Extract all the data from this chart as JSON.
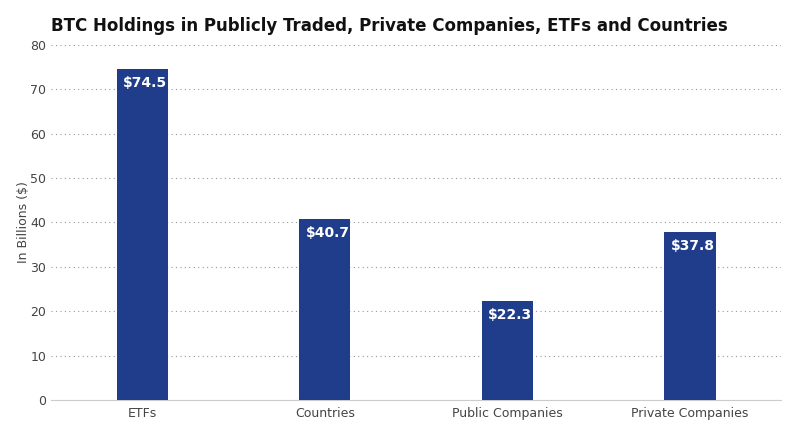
{
  "title": "BTC Holdings in Publicly Traded, Private Companies, ETFs and Countries",
  "categories": [
    "ETFs",
    "Countries",
    "Public Companies",
    "Private Companies"
  ],
  "values": [
    74.5,
    40.7,
    22.3,
    37.8
  ],
  "bar_color": "#1f3d8a",
  "ylabel": "In Billions ($)",
  "ylim": [
    0,
    80
  ],
  "yticks": [
    0,
    10,
    20,
    30,
    40,
    50,
    60,
    70,
    80
  ],
  "label_color": "#ffffff",
  "label_fontsize": 10,
  "title_fontsize": 12,
  "ylabel_fontsize": 9,
  "background_color": "#ffffff",
  "grid_color": "#999999",
  "bar_width": 0.28
}
